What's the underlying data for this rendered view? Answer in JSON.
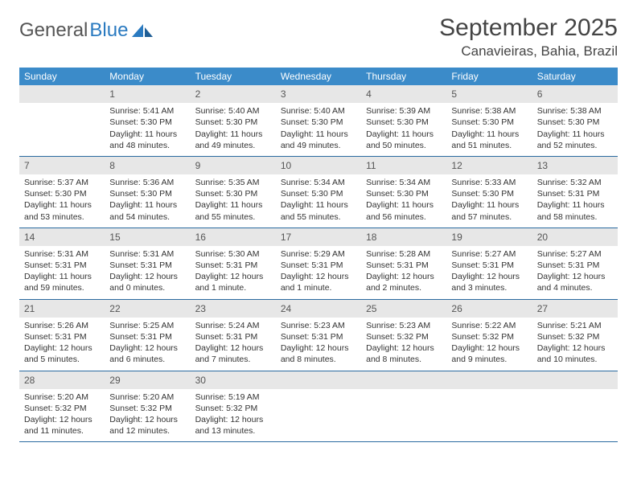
{
  "brand": {
    "part1": "General",
    "part2": "Blue"
  },
  "title": "September 2025",
  "location": "Canavieiras, Bahia, Brazil",
  "colors": {
    "header_bg": "#3b8bc9",
    "header_fg": "#ffffff",
    "daynum_bg": "#e7e7e7",
    "row_divider": "#2a6aa0",
    "logo_text": "#555555",
    "logo_accent": "#2a7ac0",
    "title_color": "#444444"
  },
  "weekdays": [
    "Sunday",
    "Monday",
    "Tuesday",
    "Wednesday",
    "Thursday",
    "Friday",
    "Saturday"
  ],
  "layout": {
    "columns": 7,
    "rows": 5,
    "first_weekday_offset": 1,
    "fonts": {
      "weekday_pt": 12,
      "daynum_pt": 12,
      "detail_pt": 10.5,
      "title_pt": 30,
      "location_pt": 17
    }
  },
  "days": [
    {
      "n": 1,
      "sunrise": "5:41 AM",
      "sunset": "5:30 PM",
      "daylight": "11 hours and 48 minutes."
    },
    {
      "n": 2,
      "sunrise": "5:40 AM",
      "sunset": "5:30 PM",
      "daylight": "11 hours and 49 minutes."
    },
    {
      "n": 3,
      "sunrise": "5:40 AM",
      "sunset": "5:30 PM",
      "daylight": "11 hours and 49 minutes."
    },
    {
      "n": 4,
      "sunrise": "5:39 AM",
      "sunset": "5:30 PM",
      "daylight": "11 hours and 50 minutes."
    },
    {
      "n": 5,
      "sunrise": "5:38 AM",
      "sunset": "5:30 PM",
      "daylight": "11 hours and 51 minutes."
    },
    {
      "n": 6,
      "sunrise": "5:38 AM",
      "sunset": "5:30 PM",
      "daylight": "11 hours and 52 minutes."
    },
    {
      "n": 7,
      "sunrise": "5:37 AM",
      "sunset": "5:30 PM",
      "daylight": "11 hours and 53 minutes."
    },
    {
      "n": 8,
      "sunrise": "5:36 AM",
      "sunset": "5:30 PM",
      "daylight": "11 hours and 54 minutes."
    },
    {
      "n": 9,
      "sunrise": "5:35 AM",
      "sunset": "5:30 PM",
      "daylight": "11 hours and 55 minutes."
    },
    {
      "n": 10,
      "sunrise": "5:34 AM",
      "sunset": "5:30 PM",
      "daylight": "11 hours and 55 minutes."
    },
    {
      "n": 11,
      "sunrise": "5:34 AM",
      "sunset": "5:30 PM",
      "daylight": "11 hours and 56 minutes."
    },
    {
      "n": 12,
      "sunrise": "5:33 AM",
      "sunset": "5:30 PM",
      "daylight": "11 hours and 57 minutes."
    },
    {
      "n": 13,
      "sunrise": "5:32 AM",
      "sunset": "5:31 PM",
      "daylight": "11 hours and 58 minutes."
    },
    {
      "n": 14,
      "sunrise": "5:31 AM",
      "sunset": "5:31 PM",
      "daylight": "11 hours and 59 minutes."
    },
    {
      "n": 15,
      "sunrise": "5:31 AM",
      "sunset": "5:31 PM",
      "daylight": "12 hours and 0 minutes."
    },
    {
      "n": 16,
      "sunrise": "5:30 AM",
      "sunset": "5:31 PM",
      "daylight": "12 hours and 1 minute."
    },
    {
      "n": 17,
      "sunrise": "5:29 AM",
      "sunset": "5:31 PM",
      "daylight": "12 hours and 1 minute."
    },
    {
      "n": 18,
      "sunrise": "5:28 AM",
      "sunset": "5:31 PM",
      "daylight": "12 hours and 2 minutes."
    },
    {
      "n": 19,
      "sunrise": "5:27 AM",
      "sunset": "5:31 PM",
      "daylight": "12 hours and 3 minutes."
    },
    {
      "n": 20,
      "sunrise": "5:27 AM",
      "sunset": "5:31 PM",
      "daylight": "12 hours and 4 minutes."
    },
    {
      "n": 21,
      "sunrise": "5:26 AM",
      "sunset": "5:31 PM",
      "daylight": "12 hours and 5 minutes."
    },
    {
      "n": 22,
      "sunrise": "5:25 AM",
      "sunset": "5:31 PM",
      "daylight": "12 hours and 6 minutes."
    },
    {
      "n": 23,
      "sunrise": "5:24 AM",
      "sunset": "5:31 PM",
      "daylight": "12 hours and 7 minutes."
    },
    {
      "n": 24,
      "sunrise": "5:23 AM",
      "sunset": "5:31 PM",
      "daylight": "12 hours and 8 minutes."
    },
    {
      "n": 25,
      "sunrise": "5:23 AM",
      "sunset": "5:32 PM",
      "daylight": "12 hours and 8 minutes."
    },
    {
      "n": 26,
      "sunrise": "5:22 AM",
      "sunset": "5:32 PM",
      "daylight": "12 hours and 9 minutes."
    },
    {
      "n": 27,
      "sunrise": "5:21 AM",
      "sunset": "5:32 PM",
      "daylight": "12 hours and 10 minutes."
    },
    {
      "n": 28,
      "sunrise": "5:20 AM",
      "sunset": "5:32 PM",
      "daylight": "12 hours and 11 minutes."
    },
    {
      "n": 29,
      "sunrise": "5:20 AM",
      "sunset": "5:32 PM",
      "daylight": "12 hours and 12 minutes."
    },
    {
      "n": 30,
      "sunrise": "5:19 AM",
      "sunset": "5:32 PM",
      "daylight": "12 hours and 13 minutes."
    }
  ],
  "labels": {
    "sunrise": "Sunrise: ",
    "sunset": "Sunset: ",
    "daylight": "Daylight: "
  }
}
